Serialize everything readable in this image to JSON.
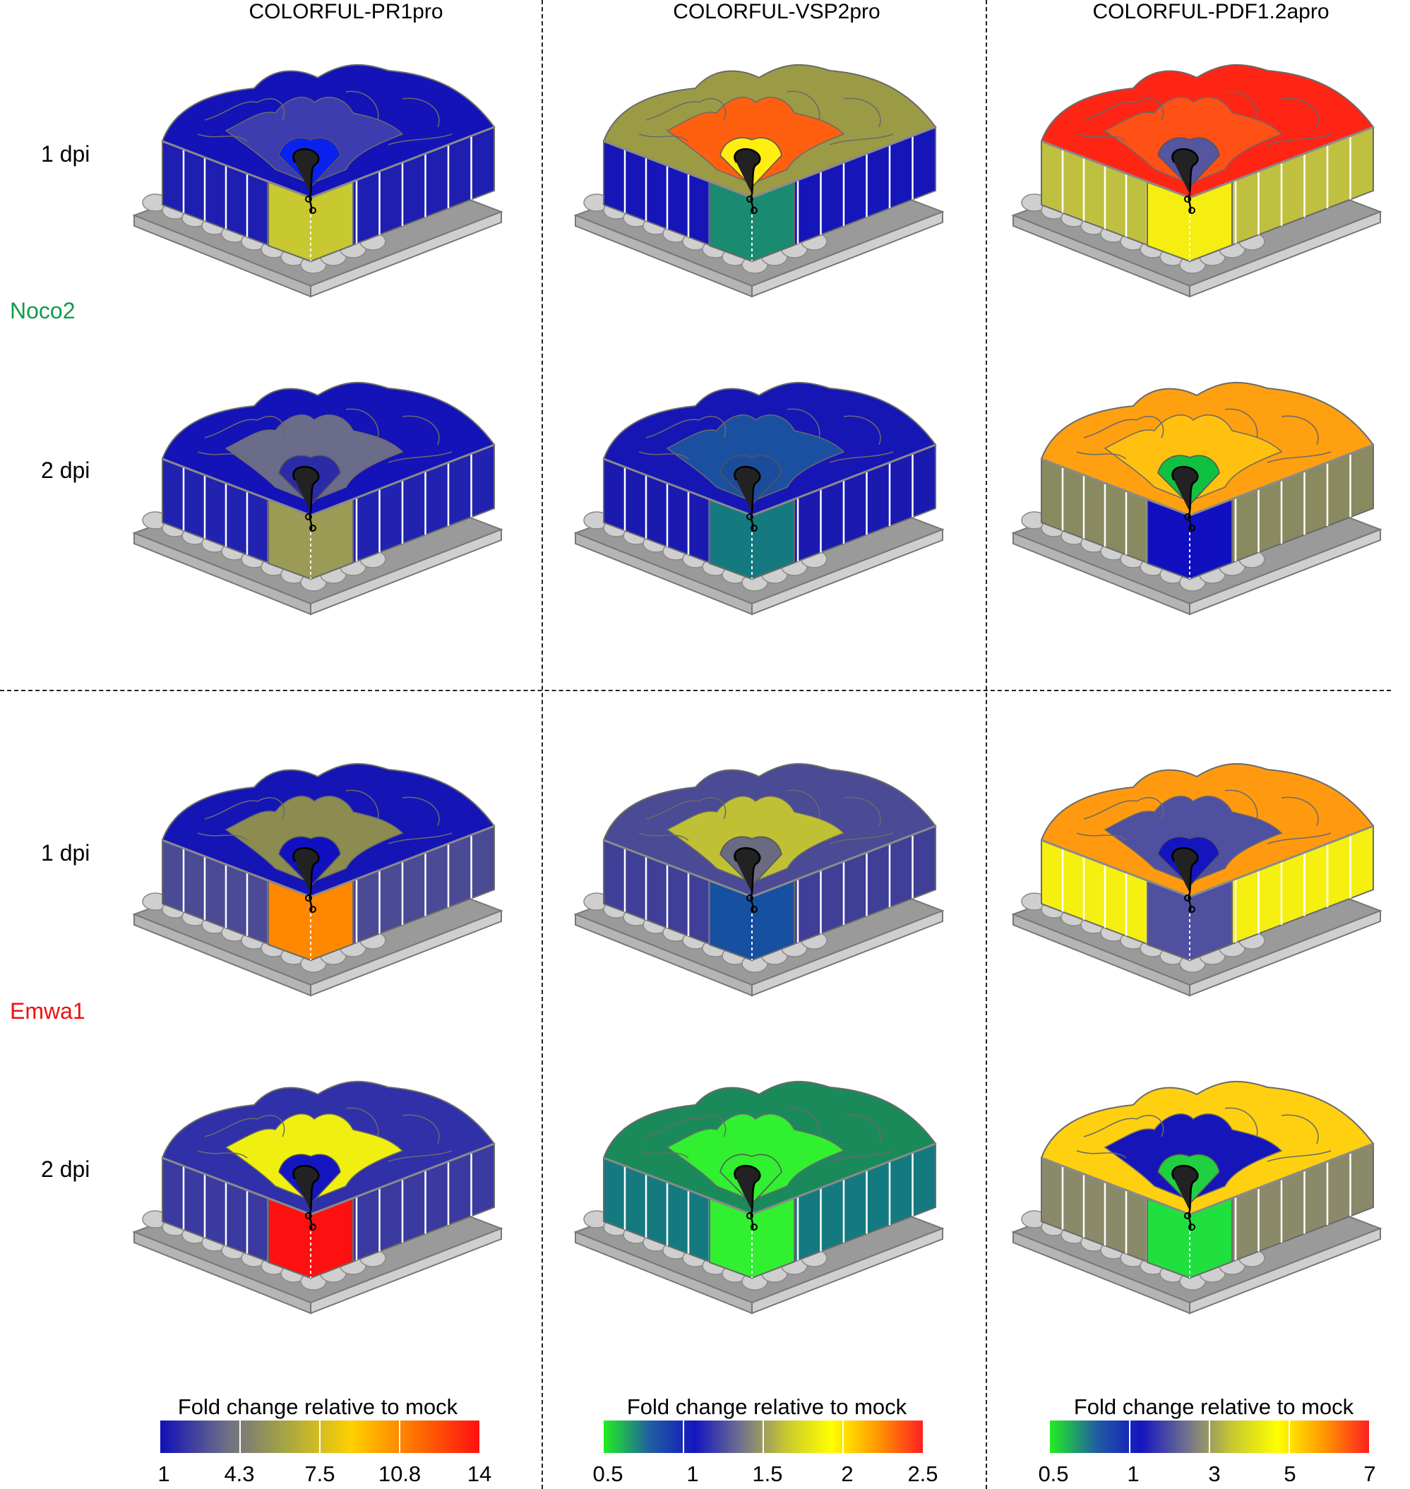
{
  "columns": [
    {
      "title": "COLORFUL-PR1pro"
    },
    {
      "title": "COLORFUL-VSP2pro"
    },
    {
      "title": "COLORFUL-PDF1.2apro"
    }
  ],
  "pathogens": [
    {
      "name": "Noco2",
      "color": "#119c4b"
    },
    {
      "name": "Emwa1",
      "color": "#ee1111"
    }
  ],
  "rows": [
    {
      "label": "1 dpi"
    },
    {
      "label": "2 dpi"
    },
    {
      "label": "1 dpi"
    },
    {
      "label": "2 dpi"
    }
  ],
  "colorbars": [
    {
      "title": "Fold change relative to mock",
      "stops": [
        "#1010b8",
        "#6b6b8a",
        "#a8a840",
        "#ffd000",
        "#ff7000",
        "#ff1010"
      ],
      "ticks": [
        "1",
        "4.3",
        "7.5",
        "10.8",
        "14"
      ]
    },
    {
      "title": "Fold change relative to mock",
      "stops": [
        "#22ee22",
        "#2060a0",
        "#1515c0",
        "#707090",
        "#c8c830",
        "#ffff00",
        "#ff9900",
        "#ff2020"
      ],
      "ticks": [
        "0.5",
        "1",
        "1.5",
        "2",
        "2.5"
      ]
    },
    {
      "title": "Fold change relative to mock",
      "stops": [
        "#22ee22",
        "#2060a0",
        "#1515c0",
        "#707090",
        "#c8c830",
        "#ffff00",
        "#ff9900",
        "#ff2020"
      ],
      "ticks": [
        "0.5",
        "1",
        "3",
        "5",
        "7"
      ]
    }
  ],
  "panels": [
    {
      "top": "#1313b8",
      "topHi": "#3d3db0",
      "topCenter": "#0a22ee",
      "side": "#1e1eb0",
      "front": "#c8c830"
    },
    {
      "top": "#9b9b45",
      "topHi": "#ff6010",
      "topCenter": "#ffee10",
      "side": "#1515b8",
      "front": "#1a8a70"
    },
    {
      "top": "#ff2515",
      "topHi": "#ff5015",
      "topCenter": "#5555a0",
      "side": "#c0c040",
      "front": "#f5ee10"
    },
    {
      "top": "#1313b8",
      "topHi": "#6b6b8a",
      "topCenter": "#2b2ba8",
      "side": "#2222b0",
      "front": "#9b9b55"
    },
    {
      "top": "#1616b5",
      "topHi": "#1b50a0",
      "topCenter": "#1b4c9c",
      "side": "#1a1ab0",
      "front": "#157a80"
    },
    {
      "top": "#ffa010",
      "topHi": "#ffc010",
      "topCenter": "#10c040",
      "side": "#8a8a60",
      "front": "#1010c0"
    },
    {
      "top": "#1515b5",
      "topHi": "#8c8c50",
      "topCenter": "#1010c0",
      "side": "#4a4a95",
      "front": "#ff8800"
    },
    {
      "top": "#4a4a95",
      "topHi": "#c0c035",
      "topCenter": "#6a6a80",
      "side": "#3f3f98",
      "front": "#1650a0"
    },
    {
      "top": "#ff9a10",
      "topHi": "#5050a0",
      "topCenter": "#1515c0",
      "side": "#f5f010",
      "front": "#5050a0"
    },
    {
      "top": "#3030a8",
      "topHi": "#f0f010",
      "topCenter": "#1515c0",
      "side": "#3a3aa0",
      "front": "#ff1010"
    },
    {
      "top": "#1a8a5a",
      "topHi": "#30f030",
      "topCenter": "#30f030",
      "side": "#157a80",
      "front": "#30f030"
    },
    {
      "top": "#ffd010",
      "topHi": "#1515b8",
      "topCenter": "#20d040",
      "side": "#8a8a6a",
      "front": "#20e040"
    }
  ]
}
